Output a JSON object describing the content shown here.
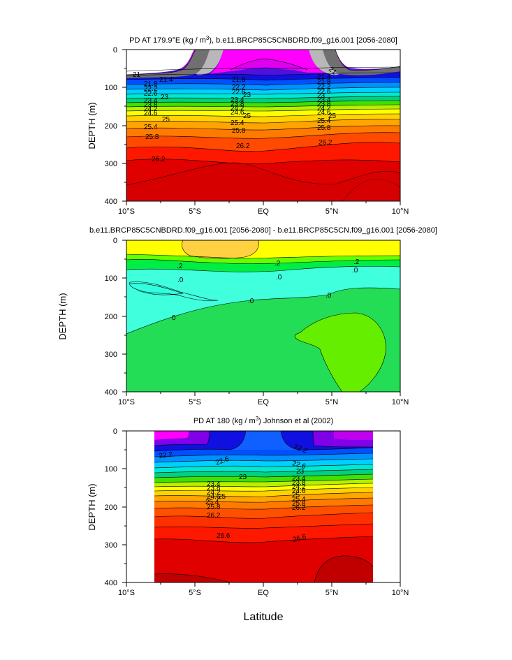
{
  "chart_data": [
    {
      "type": "heatmap",
      "title": "PD AT 179.9°E (kg / m³), b.e11.BRCP85C5CNBDRD.f09_g16.001 [2056-2080]",
      "title_text": "PD AT 179.9°E (kg / m",
      "title_sup": "3",
      "title_rest": "), b.e11.BRCP85C5CNBDRD.f09_g16.001 [2056-2080]",
      "ylabel": "DEPTH (m)",
      "xlim": [
        -10,
        10
      ],
      "ylim": [
        400,
        0
      ],
      "x_ticks": [
        "10°S",
        "5°S",
        "EQ",
        "5°N",
        "10°N"
      ],
      "y_ticks": [
        "0",
        "100",
        "200",
        "300",
        "400"
      ],
      "contour_levels": [
        21,
        21.4,
        21.8,
        22.2,
        22.6,
        23,
        23.4,
        23.8,
        24.2,
        24.6,
        25,
        25.4,
        25.8,
        26.2
      ],
      "contour_depths_m": {
        "21": 67,
        "21.4": 80,
        "21.8": 90,
        "22.2": 101,
        "22.6": 111,
        "23": 122,
        "23.4": 132,
        "23.8": 141,
        "24.2": 150,
        "24.6": 160,
        "25": 172,
        "25.4": 190,
        "25.8": 212,
        "26.2": 250
      },
      "labels_left": [
        "21",
        "21.4",
        "21.8",
        "22.2",
        "22.6",
        "23",
        "23.4",
        "23.8",
        "24.2",
        "24.6",
        "25",
        "25.4",
        "25.8",
        "26.2"
      ],
      "labels_center": [
        "21.8",
        "22.2",
        "22.6",
        "23",
        "23.4",
        "23.8",
        "24.2",
        "24.6",
        "25",
        "25.4",
        "25.8",
        "26.2"
      ],
      "labels_right": [
        "21",
        "21.4",
        "21.8",
        "22.2",
        "22.6",
        "23",
        "23.4",
        "23.8",
        "24.2",
        "24.6",
        "25",
        "25.4",
        "25.8",
        "26.2"
      ]
    },
    {
      "type": "heatmap",
      "title": "b.e11.BRCP85C5CNBDRD.f09_g16.001 [2056-2080] - b.e11.BRCP85C5CN.f09_g16.001 [2056-2080]",
      "ylabel": "DEPTH (m)",
      "xlim": [
        -10,
        10
      ],
      "ylim": [
        400,
        0
      ],
      "x_ticks": [
        "10°S",
        "5°S",
        "EQ",
        "5°N",
        "10°N"
      ],
      "y_ticks": [
        "0",
        "100",
        "200",
        "300",
        "400"
      ],
      "contour_labels": [
        ".2",
        ".2",
        ".2",
        ".0",
        ".0",
        ".0",
        ".0",
        "0"
      ]
    },
    {
      "type": "heatmap",
      "title": "PD AT 180 (kg / m³) Johnson et al (2002)",
      "title_text": "PD AT 180 (kg / m",
      "title_sup": "3",
      "title_rest": ") Johnson et al (2002)",
      "ylabel": "DEPTH (m)",
      "xlabel": "Latitude",
      "xlim": [
        -10,
        10
      ],
      "data_xlim": [
        -8,
        8
      ],
      "ylim": [
        400,
        0
      ],
      "x_ticks": [
        "10°S",
        "5°S",
        "EQ",
        "5°N",
        "10°N"
      ],
      "y_ticks": [
        "0",
        "100",
        "200",
        "300",
        "400"
      ],
      "contour_levels": [
        22.2,
        22.6,
        23,
        23.4,
        23.8,
        24.2,
        24.6,
        25,
        25.4,
        25.8,
        26.2,
        26.6
      ],
      "labels_left": [
        "22.2",
        "22.6",
        "23",
        "23.4",
        "23.8",
        "24.2",
        "24.6",
        "25",
        "25.4",
        "25.8",
        "26.2",
        "26.6"
      ],
      "labels_right": [
        "22.2",
        "22.6",
        "23",
        "23.4",
        "23.8",
        "24.2",
        "24.6",
        "25",
        "25.4",
        "25.8",
        "26.2",
        "26.6"
      ]
    }
  ]
}
